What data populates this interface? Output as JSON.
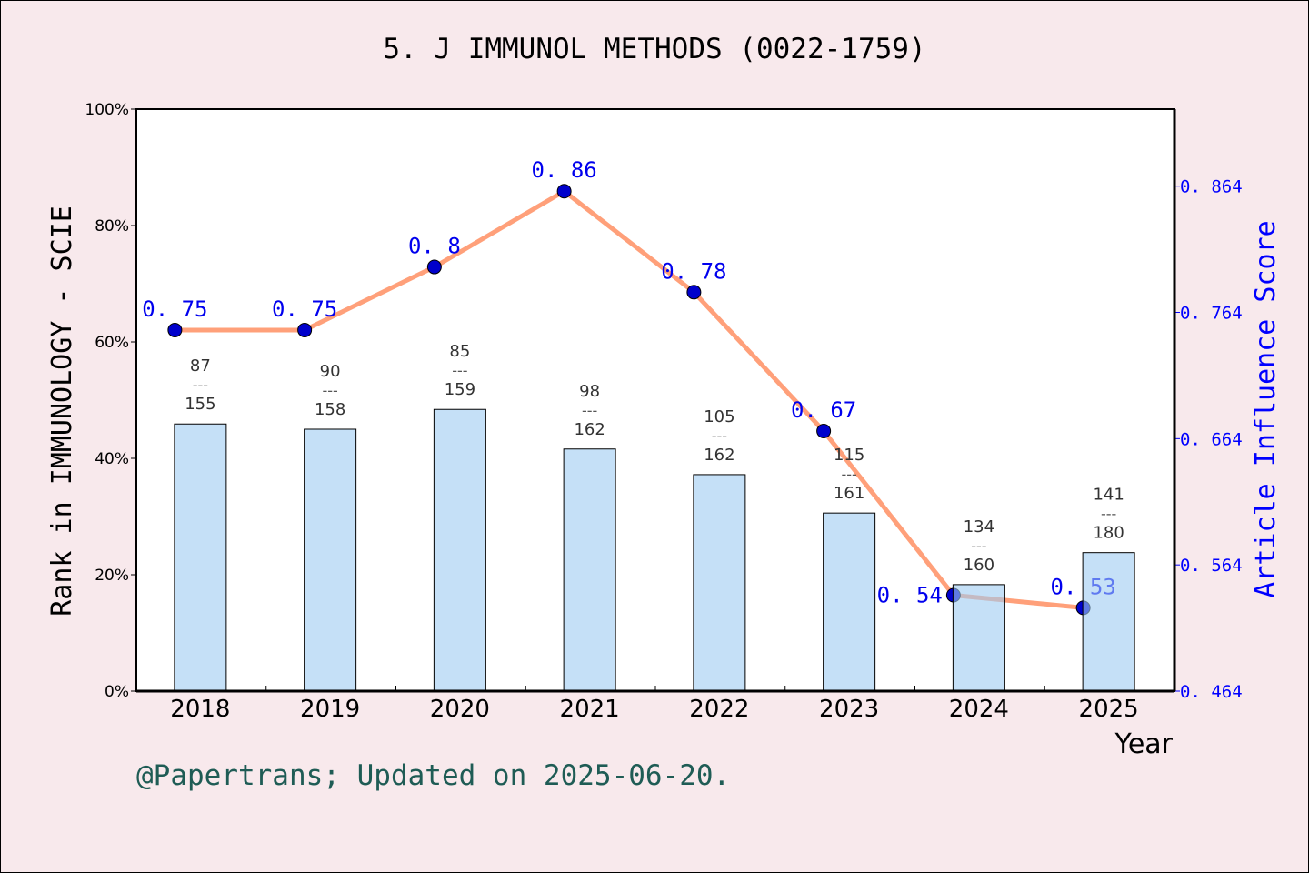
{
  "chart_data": {
    "type": "bar+line",
    "title": "5. J IMMUNOL METHODS (0022-1759)",
    "xlabel": "Year",
    "ylabel": "Rank in IMMUNOLOGY - SCIE",
    "y2label": "Article Influence Score",
    "categories": [
      "2018",
      "2019",
      "2020",
      "2021",
      "2022",
      "2023",
      "2024",
      "2025"
    ],
    "ylim": [
      0,
      100
    ],
    "yticks": [
      "0%",
      "20%",
      "40%",
      "60%",
      "80%",
      "100%"
    ],
    "y2lim": [
      0.464,
      0.925
    ],
    "y2ticks": [
      "0.464",
      "0.564",
      "0.664",
      "0.764",
      "0.864"
    ],
    "bars": {
      "values": [
        45.9,
        45.0,
        48.4,
        41.6,
        37.2,
        30.6,
        18.3,
        23.8
      ],
      "rank": [
        "87",
        "90",
        "85",
        "98",
        "105",
        "115",
        "134",
        "141"
      ],
      "total": [
        "155",
        "158",
        "159",
        "162",
        "162",
        "161",
        "160",
        "180"
      ],
      "color": "#c5e0f7"
    },
    "line": {
      "values": [
        0.75,
        0.75,
        0.8,
        0.86,
        0.78,
        0.67,
        0.54,
        0.53
      ],
      "labels": [
        "0.75",
        "0.75",
        "0.8",
        "0.86",
        "0.78",
        "0.67",
        "0.54",
        "0.53"
      ],
      "color": "#ffa07a",
      "marker_color": "#0000cc",
      "label_color": "#0000ee"
    },
    "grid": false
  },
  "footer": "@Papertrans; Updated on 2025-06-20."
}
